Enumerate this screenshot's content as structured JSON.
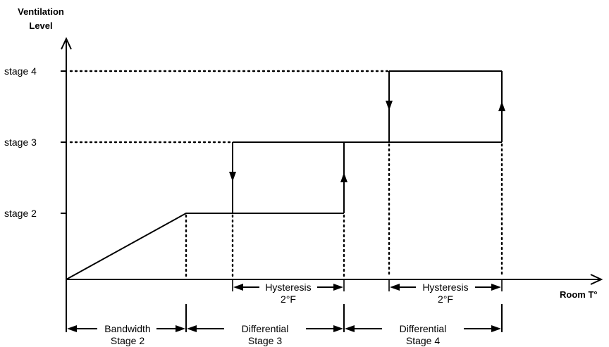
{
  "y_axis": {
    "label_line1": "Ventilation",
    "label_line2": "Level"
  },
  "x_axis": {
    "label": "Room T°"
  },
  "levels": [
    {
      "key": "stage2",
      "label": "stage 2"
    },
    {
      "key": "stage3",
      "label": "stage 3"
    },
    {
      "key": "stage4",
      "label": "stage 4"
    }
  ],
  "hysteresis": [
    {
      "line1": "Hysteresis",
      "line2": "2°F"
    },
    {
      "line1": "Hysteresis",
      "line2": "2°F"
    }
  ],
  "bands": [
    {
      "line1": "Bandwidth",
      "line2": "Stage 2"
    },
    {
      "line1": "Differential",
      "line2": "Stage 3"
    },
    {
      "line1": "Differential",
      "line2": "Stage 4"
    }
  ]
}
